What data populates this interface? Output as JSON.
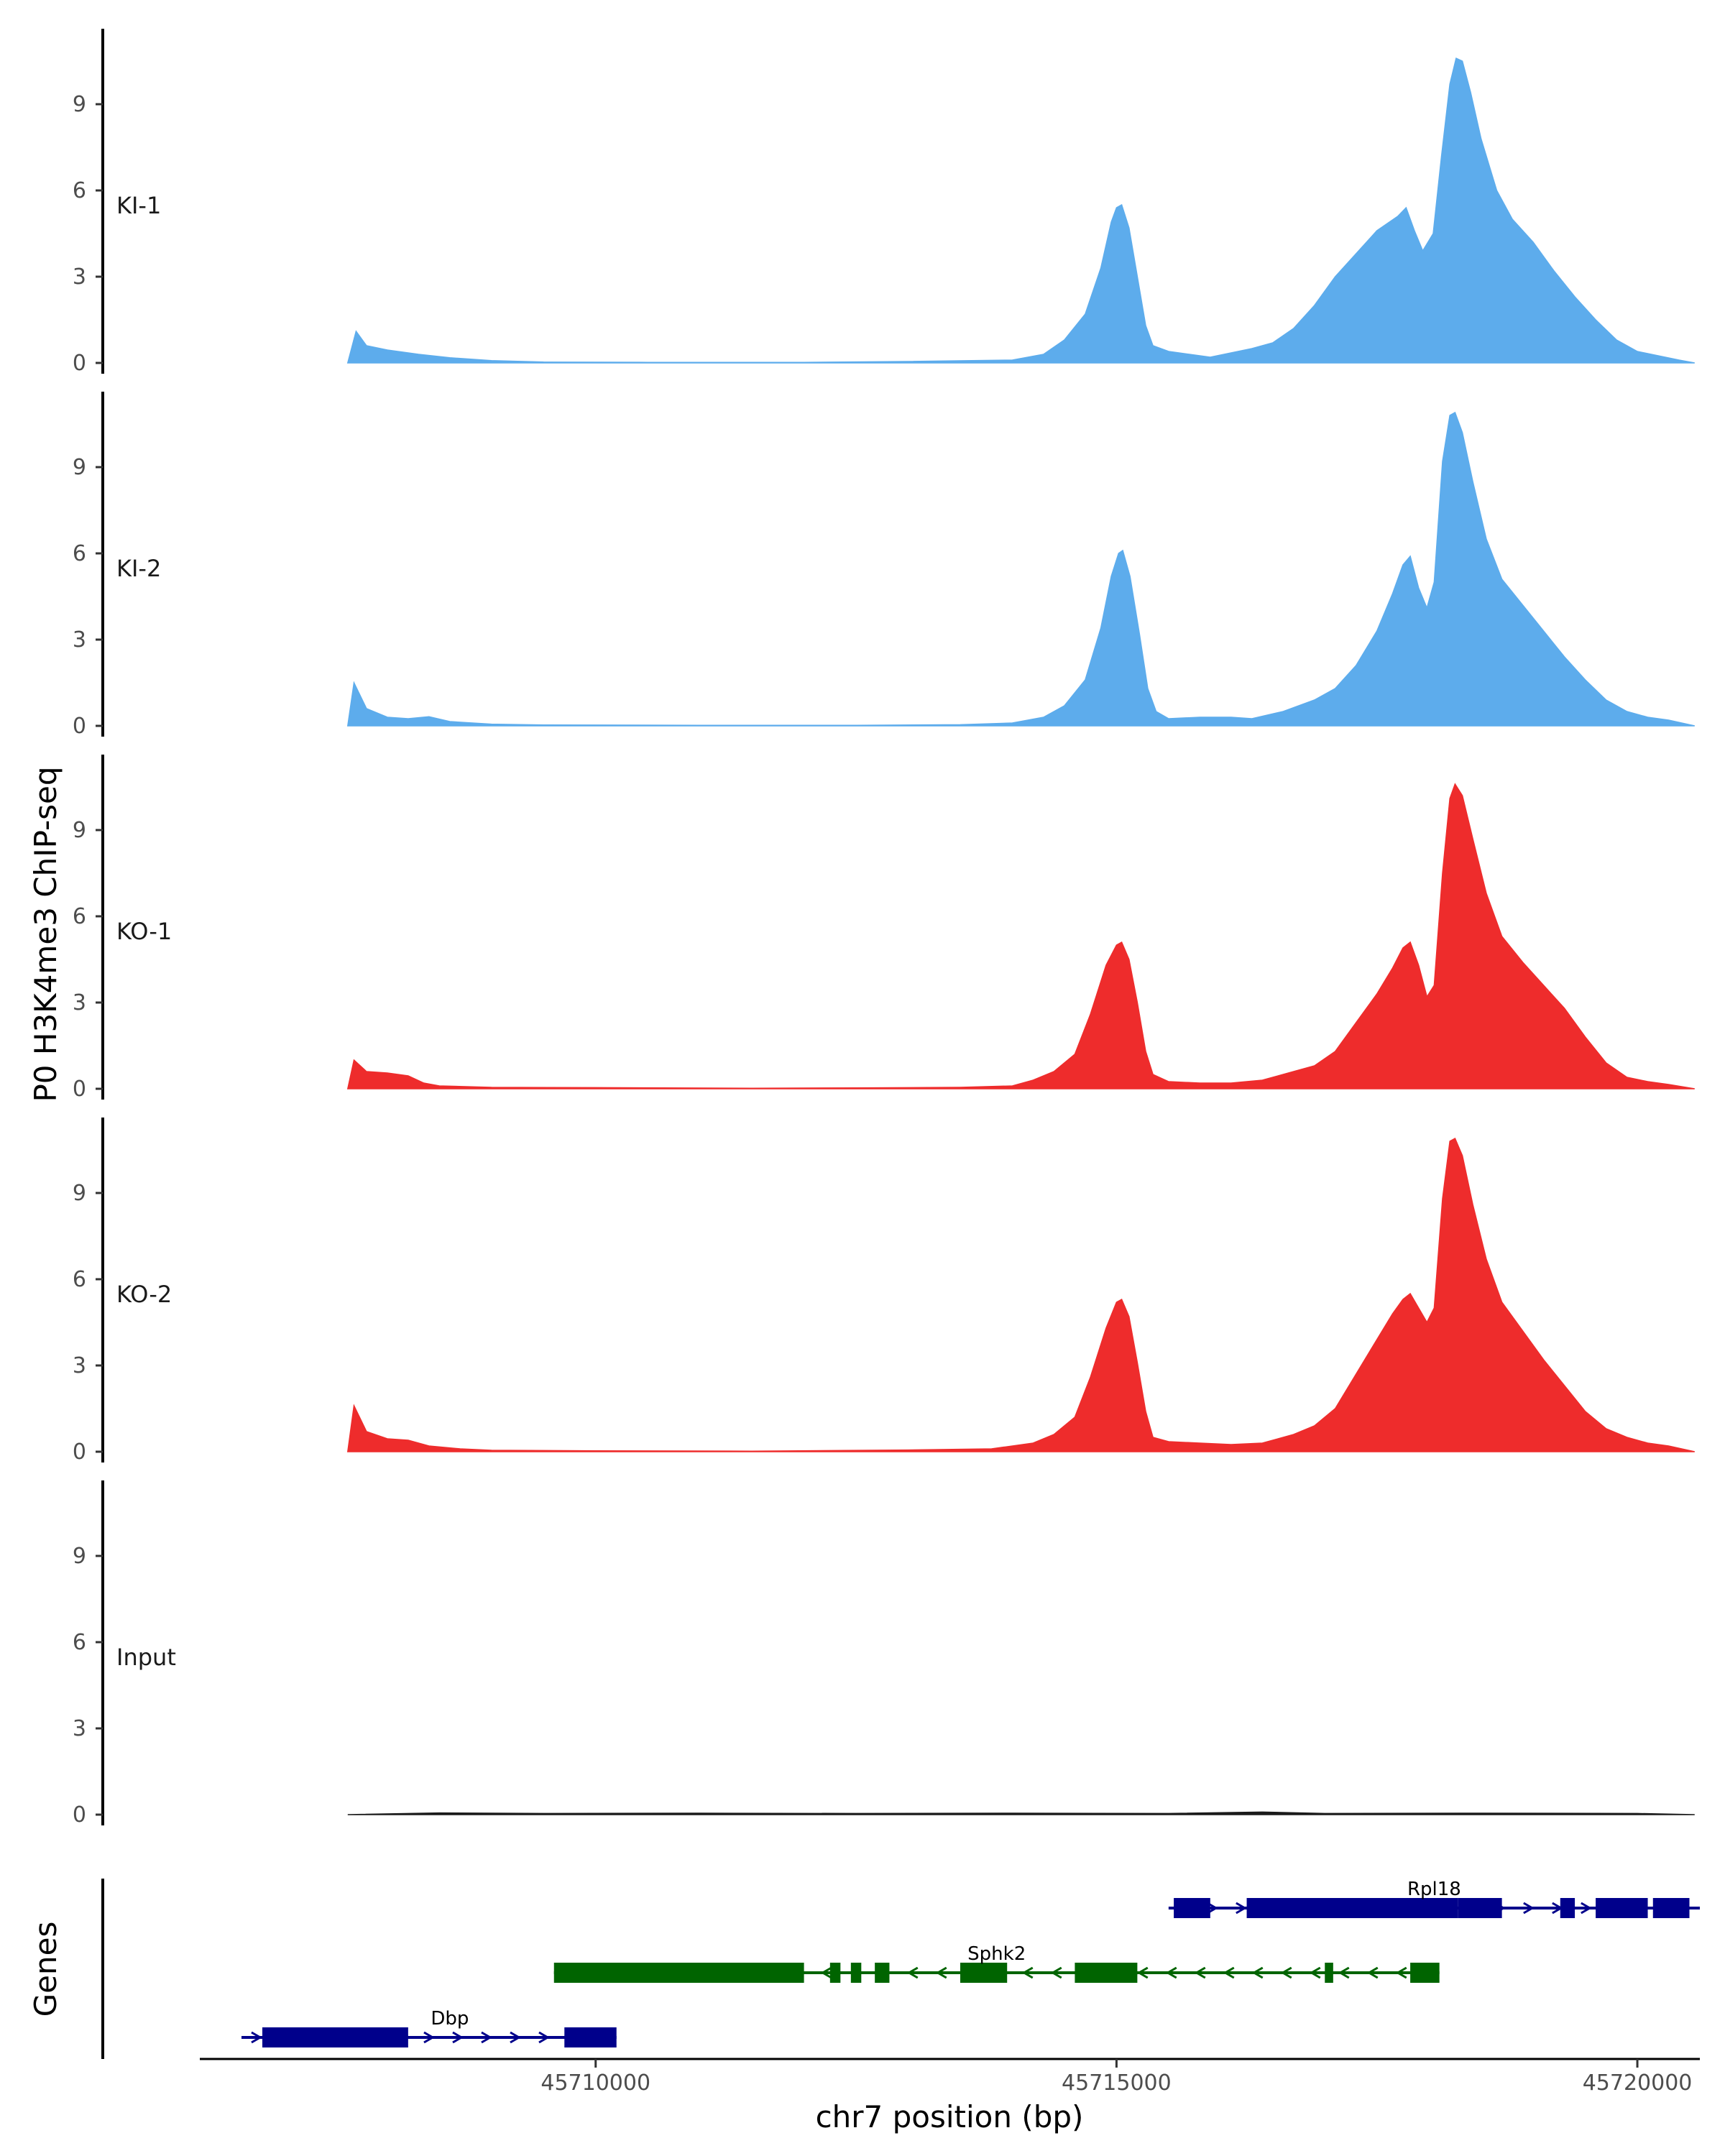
{
  "chart_data": {
    "type": "area",
    "ylabel": "P0 H3K4me3 ChIP-seq",
    "xlabel": "chr7 position (bp)",
    "xlim": [
      45706200,
      45720600
    ],
    "x_ticks": [
      45710000,
      45715000,
      45720000
    ],
    "x_tick_labels": [
      "45710000",
      "45715000",
      "45720000"
    ],
    "ylim": [
      0,
      11.5
    ],
    "y_ticks": [
      0,
      3,
      6,
      9
    ],
    "y_tick_labels": [
      "0",
      "3",
      "6",
      "9"
    ],
    "genes_label": "Genes",
    "tracks": [
      {
        "name": "KI-1",
        "color": "#5DACEC",
        "points": [
          [
            45707620,
            0
          ],
          [
            45707700,
            1.1
          ],
          [
            45707800,
            0.6
          ],
          [
            45708000,
            0.45
          ],
          [
            45708300,
            0.3
          ],
          [
            45708600,
            0.18
          ],
          [
            45709000,
            0.08
          ],
          [
            45709500,
            0.03
          ],
          [
            45710500,
            0.02
          ],
          [
            45712000,
            0.02
          ],
          [
            45713000,
            0.05
          ],
          [
            45714000,
            0.1
          ],
          [
            45714300,
            0.3
          ],
          [
            45714500,
            0.8
          ],
          [
            45714700,
            1.7
          ],
          [
            45714850,
            3.3
          ],
          [
            45714950,
            4.9
          ],
          [
            45715000,
            5.4
          ],
          [
            45715050,
            5.5
          ],
          [
            45715120,
            4.7
          ],
          [
            45715200,
            3.0
          ],
          [
            45715280,
            1.3
          ],
          [
            45715350,
            0.6
          ],
          [
            45715500,
            0.4
          ],
          [
            45715700,
            0.3
          ],
          [
            45715900,
            0.2
          ],
          [
            45716100,
            0.35
          ],
          [
            45716300,
            0.5
          ],
          [
            45716500,
            0.7
          ],
          [
            45716700,
            1.2
          ],
          [
            45716900,
            2.0
          ],
          [
            45717100,
            3.0
          ],
          [
            45717300,
            3.8
          ],
          [
            45717500,
            4.6
          ],
          [
            45717700,
            5.1
          ],
          [
            45717780,
            5.4
          ],
          [
            45717860,
            4.6
          ],
          [
            45717940,
            3.9
          ],
          [
            45718040,
            4.5
          ],
          [
            45718120,
            7.2
          ],
          [
            45718200,
            9.7
          ],
          [
            45718260,
            10.6
          ],
          [
            45718320,
            10.5
          ],
          [
            45718400,
            9.4
          ],
          [
            45718500,
            7.8
          ],
          [
            45718650,
            6.0
          ],
          [
            45718800,
            5.0
          ],
          [
            45719000,
            4.2
          ],
          [
            45719200,
            3.2
          ],
          [
            45719400,
            2.3
          ],
          [
            45719600,
            1.5
          ],
          [
            45719800,
            0.8
          ],
          [
            45720000,
            0.4
          ],
          [
            45720200,
            0.25
          ],
          [
            45720400,
            0.1
          ],
          [
            45720550,
            0
          ]
        ]
      },
      {
        "name": "KI-2",
        "color": "#5DACEC",
        "points": [
          [
            45707620,
            0
          ],
          [
            45707680,
            1.5
          ],
          [
            45707800,
            0.6
          ],
          [
            45708000,
            0.3
          ],
          [
            45708200,
            0.25
          ],
          [
            45708400,
            0.32
          ],
          [
            45708600,
            0.15
          ],
          [
            45709000,
            0.06
          ],
          [
            45709500,
            0.03
          ],
          [
            45711000,
            0.02
          ],
          [
            45712500,
            0.02
          ],
          [
            45713500,
            0.04
          ],
          [
            45714000,
            0.1
          ],
          [
            45714300,
            0.3
          ],
          [
            45714500,
            0.7
          ],
          [
            45714700,
            1.6
          ],
          [
            45714850,
            3.4
          ],
          [
            45714950,
            5.2
          ],
          [
            45715020,
            6.0
          ],
          [
            45715060,
            6.1
          ],
          [
            45715130,
            5.2
          ],
          [
            45715220,
            3.2
          ],
          [
            45715300,
            1.3
          ],
          [
            45715380,
            0.5
          ],
          [
            45715500,
            0.25
          ],
          [
            45715800,
            0.3
          ],
          [
            45716100,
            0.3
          ],
          [
            45716300,
            0.25
          ],
          [
            45716600,
            0.5
          ],
          [
            45716900,
            0.9
          ],
          [
            45717100,
            1.3
          ],
          [
            45717300,
            2.1
          ],
          [
            45717500,
            3.3
          ],
          [
            45717650,
            4.6
          ],
          [
            45717750,
            5.6
          ],
          [
            45717820,
            5.9
          ],
          [
            45717900,
            4.8
          ],
          [
            45717980,
            4.1
          ],
          [
            45718050,
            5.0
          ],
          [
            45718130,
            9.2
          ],
          [
            45718200,
            10.8
          ],
          [
            45718250,
            10.9
          ],
          [
            45718320,
            10.2
          ],
          [
            45718420,
            8.5
          ],
          [
            45718550,
            6.5
          ],
          [
            45718700,
            5.1
          ],
          [
            45718900,
            4.2
          ],
          [
            45719100,
            3.3
          ],
          [
            45719300,
            2.4
          ],
          [
            45719500,
            1.6
          ],
          [
            45719700,
            0.9
          ],
          [
            45719900,
            0.5
          ],
          [
            45720100,
            0.3
          ],
          [
            45720300,
            0.2
          ],
          [
            45720550,
            0
          ]
        ]
      },
      {
        "name": "KO-1",
        "color": "#EE2C2C",
        "points": [
          [
            45707620,
            0
          ],
          [
            45707680,
            1.0
          ],
          [
            45707800,
            0.6
          ],
          [
            45708000,
            0.55
          ],
          [
            45708200,
            0.45
          ],
          [
            45708350,
            0.2
          ],
          [
            45708500,
            0.1
          ],
          [
            45709000,
            0.05
          ],
          [
            45710000,
            0.04
          ],
          [
            45711500,
            0.02
          ],
          [
            45712500,
            0.03
          ],
          [
            45713500,
            0.05
          ],
          [
            45714000,
            0.1
          ],
          [
            45714200,
            0.3
          ],
          [
            45714400,
            0.6
          ],
          [
            45714600,
            1.2
          ],
          [
            45714750,
            2.6
          ],
          [
            45714900,
            4.3
          ],
          [
            45715000,
            5.0
          ],
          [
            45715050,
            5.1
          ],
          [
            45715120,
            4.5
          ],
          [
            45715200,
            3.0
          ],
          [
            45715280,
            1.3
          ],
          [
            45715350,
            0.5
          ],
          [
            45715500,
            0.25
          ],
          [
            45715800,
            0.2
          ],
          [
            45716100,
            0.2
          ],
          [
            45716400,
            0.3
          ],
          [
            45716700,
            0.6
          ],
          [
            45716900,
            0.8
          ],
          [
            45717100,
            1.3
          ],
          [
            45717300,
            2.3
          ],
          [
            45717500,
            3.3
          ],
          [
            45717650,
            4.2
          ],
          [
            45717750,
            4.9
          ],
          [
            45717820,
            5.1
          ],
          [
            45717900,
            4.3
          ],
          [
            45717980,
            3.2
          ],
          [
            45718050,
            3.6
          ],
          [
            45718130,
            7.5
          ],
          [
            45718200,
            10.1
          ],
          [
            45718250,
            10.6
          ],
          [
            45718320,
            10.2
          ],
          [
            45718420,
            8.7
          ],
          [
            45718550,
            6.8
          ],
          [
            45718700,
            5.3
          ],
          [
            45718900,
            4.4
          ],
          [
            45719100,
            3.6
          ],
          [
            45719300,
            2.8
          ],
          [
            45719500,
            1.8
          ],
          [
            45719700,
            0.9
          ],
          [
            45719900,
            0.4
          ],
          [
            45720100,
            0.25
          ],
          [
            45720300,
            0.15
          ],
          [
            45720550,
            0
          ]
        ]
      },
      {
        "name": "KO-2",
        "color": "#EE2C2C",
        "points": [
          [
            45707620,
            0
          ],
          [
            45707680,
            1.6
          ],
          [
            45707800,
            0.7
          ],
          [
            45708000,
            0.45
          ],
          [
            45708200,
            0.4
          ],
          [
            45708400,
            0.2
          ],
          [
            45708700,
            0.1
          ],
          [
            45709000,
            0.05
          ],
          [
            45710000,
            0.03
          ],
          [
            45711500,
            0.02
          ],
          [
            45713000,
            0.06
          ],
          [
            45713800,
            0.1
          ],
          [
            45714200,
            0.3
          ],
          [
            45714400,
            0.6
          ],
          [
            45714600,
            1.2
          ],
          [
            45714750,
            2.6
          ],
          [
            45714900,
            4.3
          ],
          [
            45715000,
            5.2
          ],
          [
            45715050,
            5.3
          ],
          [
            45715120,
            4.7
          ],
          [
            45715200,
            3.1
          ],
          [
            45715280,
            1.4
          ],
          [
            45715350,
            0.5
          ],
          [
            45715500,
            0.35
          ],
          [
            45715800,
            0.3
          ],
          [
            45716100,
            0.25
          ],
          [
            45716400,
            0.3
          ],
          [
            45716700,
            0.6
          ],
          [
            45716900,
            0.9
          ],
          [
            45717100,
            1.5
          ],
          [
            45717300,
            2.7
          ],
          [
            45717500,
            3.9
          ],
          [
            45717650,
            4.8
          ],
          [
            45717750,
            5.3
          ],
          [
            45717820,
            5.5
          ],
          [
            45717900,
            5.0
          ],
          [
            45717980,
            4.5
          ],
          [
            45718050,
            5.0
          ],
          [
            45718130,
            8.8
          ],
          [
            45718200,
            10.8
          ],
          [
            45718250,
            10.9
          ],
          [
            45718320,
            10.3
          ],
          [
            45718420,
            8.6
          ],
          [
            45718550,
            6.7
          ],
          [
            45718700,
            5.2
          ],
          [
            45718900,
            4.2
          ],
          [
            45719100,
            3.2
          ],
          [
            45719300,
            2.3
          ],
          [
            45719500,
            1.4
          ],
          [
            45719700,
            0.8
          ],
          [
            45719900,
            0.5
          ],
          [
            45720100,
            0.3
          ],
          [
            45720300,
            0.2
          ],
          [
            45720550,
            0
          ]
        ]
      },
      {
        "name": "Input",
        "color": "#1a1a1a",
        "points": [
          [
            45707620,
            0
          ],
          [
            45708500,
            0.06
          ],
          [
            45709500,
            0.04
          ],
          [
            45711000,
            0.05
          ],
          [
            45712500,
            0.04
          ],
          [
            45714000,
            0.05
          ],
          [
            45715500,
            0.04
          ],
          [
            45716400,
            0.09
          ],
          [
            45717000,
            0.04
          ],
          [
            45718500,
            0.05
          ],
          [
            45720000,
            0.04
          ],
          [
            45720550,
            0
          ]
        ]
      }
    ],
    "genes": [
      {
        "name": "Rpl18",
        "color": "#00008B",
        "strand": "+",
        "start": 45715500,
        "end": 45720600,
        "exons": [
          [
            45715550,
            45715900
          ],
          [
            45716250,
            45718280
          ],
          [
            45718280,
            45718700
          ],
          [
            45719260,
            45719400
          ],
          [
            45719600,
            45720100
          ],
          [
            45720150,
            45720500
          ]
        ]
      },
      {
        "name": "Sphk2",
        "color": "#006400",
        "strand": "-",
        "start": 45709600,
        "end": 45718100,
        "exons": [
          [
            45709600,
            45712000
          ],
          [
            45712250,
            45712350
          ],
          [
            45712450,
            45712550
          ],
          [
            45712680,
            45712820
          ],
          [
            45713500,
            45713950
          ],
          [
            45714600,
            45715200
          ],
          [
            45717000,
            45717080
          ],
          [
            45717820,
            45718100
          ]
        ]
      },
      {
        "name": "Dbp",
        "color": "#00008B",
        "strand": "+",
        "start": 45706600,
        "end": 45710200,
        "exons": [
          [
            45706800,
            45708200
          ],
          [
            45709700,
            45710200
          ]
        ]
      }
    ]
  }
}
